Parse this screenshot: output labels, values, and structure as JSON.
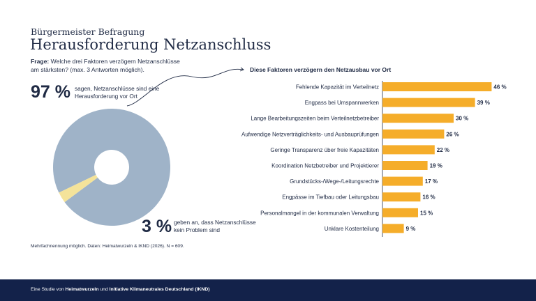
{
  "header": {
    "eyebrow": "Bürgermeister Befragung",
    "title": "Herausforderung Netzanschluss"
  },
  "question": {
    "label": "Frage:",
    "text": "Welche drei Faktoren verzögern Netzanschlüsse am stärksten? (max. 3 Antworten möglich)."
  },
  "stat_main": {
    "value": "97 %",
    "text": "sagen, Netzanschlüsse sind eine Herausforderung vor Ort"
  },
  "stat_minor": {
    "value": "3 %",
    "text": "geben an, dass Netzanschlüsse kein Problem sind"
  },
  "footnote": "Mehrfachnennung möglich. Daten: Heimatwurzeln & IKND (2026). N = 609.",
  "footer": {
    "prefix": "Eine Studie von ",
    "org1": "Heimatwurzeln",
    "mid": " und ",
    "org2": "Initiative Klimaneutrales Deutschland (IKND)"
  },
  "colors": {
    "navy": "#1f2a44",
    "bar": "#f5ad2a",
    "donut_main": "#9fb3c8",
    "donut_minor": "#f4e39a",
    "footer_bg": "#13224a"
  },
  "chart_data": [
    {
      "type": "pie",
      "variant": "donut",
      "categories": [
        "Herausforderung",
        "kein Problem"
      ],
      "values": [
        97,
        3
      ]
    },
    {
      "type": "bar",
      "orientation": "horizontal",
      "title": "Diese Faktoren verzögern den Netzausbau vor Ort",
      "categories": [
        "Fehlende Kapazität im Verteilnetz",
        "Engpass bei Umspannwerken",
        "Lange Bearbeitungszeiten beim Verteilnetzbetreiber",
        "Aufwendige Netzverträglichkeits- und Ausbauprüfungen",
        "Geringe Transparenz über freie Kapazitäten",
        "Koordination Netzbetreiber und Projektierer",
        "Grundstücks-/Wege-/Leitungsrechte",
        "Engpässe im Tiefbau oder Leitungsbau",
        "Personalmangel in der kommunalen Verwaltung",
        "Unklare Kostenteilung"
      ],
      "values": [
        46,
        39,
        30,
        26,
        22,
        19,
        17,
        16,
        15,
        9
      ],
      "value_labels": [
        "46 %",
        "39 %",
        "30 %",
        "26 %",
        "22 %",
        "19 %",
        "17 %",
        "16 %",
        "15 %",
        "9 %"
      ],
      "unit": "%"
    }
  ]
}
